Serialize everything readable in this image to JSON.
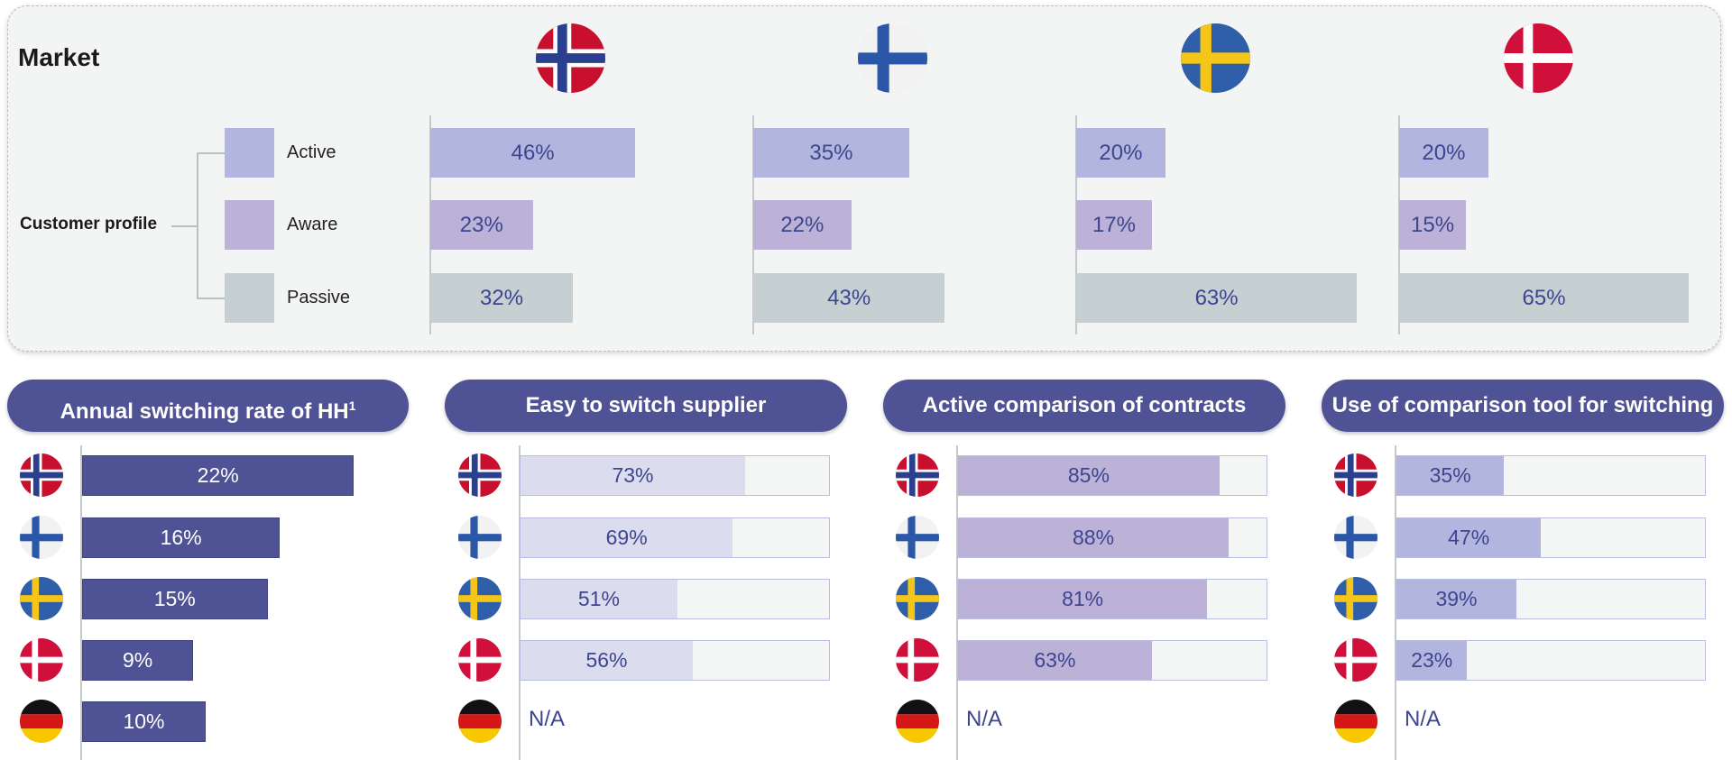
{
  "market": {
    "title": "Market",
    "customer_profile_label": "Customer profile",
    "flags": [
      "norway-flag",
      "finland-flag",
      "sweden-flag",
      "denmark-flag"
    ]
  },
  "colors": {
    "active": "#b2b5dd",
    "aware": "#bcb1d6",
    "passive": "#c6d0d2",
    "pill": "#4f5294",
    "easy": "#dcdcef",
    "compare": "#bcb1d6",
    "tool": "#b2b5dd",
    "switching": "#4f5294",
    "text": "#3d4590"
  },
  "chart_data": [
    {
      "type": "bar",
      "title": "Market",
      "categories": [
        "Norway",
        "Finland",
        "Sweden",
        "Denmark"
      ],
      "series": [
        {
          "name": "Active",
          "labels": [
            "46%",
            "35%",
            "20%",
            "20%"
          ],
          "values": [
            46,
            35,
            20,
            20
          ]
        },
        {
          "name": "Aware",
          "labels": [
            "23%",
            "22%",
            "17%",
            "15%"
          ],
          "values": [
            23,
            22,
            17,
            15
          ]
        },
        {
          "name": "Passive",
          "labels": [
            "32%",
            "43%",
            "63%",
            "65%"
          ],
          "values": [
            32,
            43,
            63,
            65
          ]
        }
      ]
    },
    {
      "type": "bar",
      "title": "Annual switching rate of HH",
      "title_sup": "1",
      "categories": [
        "Norway",
        "Finland",
        "Sweden",
        "Denmark",
        "Germany"
      ],
      "labels": [
        "22%",
        "16%",
        "15%",
        "9%",
        "10%"
      ],
      "values": [
        22,
        16,
        15,
        9,
        10
      ]
    },
    {
      "type": "bar",
      "title": "Easy to switch supplier",
      "categories": [
        "Norway",
        "Finland",
        "Sweden",
        "Denmark",
        "Germany"
      ],
      "labels": [
        "73%",
        "69%",
        "51%",
        "56%",
        "N/A"
      ],
      "values": [
        73,
        69,
        51,
        56,
        null
      ]
    },
    {
      "type": "bar",
      "title": "Active comparison of contracts",
      "categories": [
        "Norway",
        "Finland",
        "Sweden",
        "Denmark",
        "Germany"
      ],
      "labels": [
        "85%",
        "88%",
        "81%",
        "63%",
        "N/A"
      ],
      "values": [
        85,
        88,
        81,
        63,
        null
      ]
    },
    {
      "type": "bar",
      "title": "Use of comparison tool for switching",
      "categories": [
        "Norway",
        "Finland",
        "Sweden",
        "Denmark",
        "Germany"
      ],
      "labels": [
        "35%",
        "47%",
        "39%",
        "23%",
        "N/A"
      ],
      "values": [
        35,
        47,
        39,
        23,
        null
      ]
    }
  ]
}
